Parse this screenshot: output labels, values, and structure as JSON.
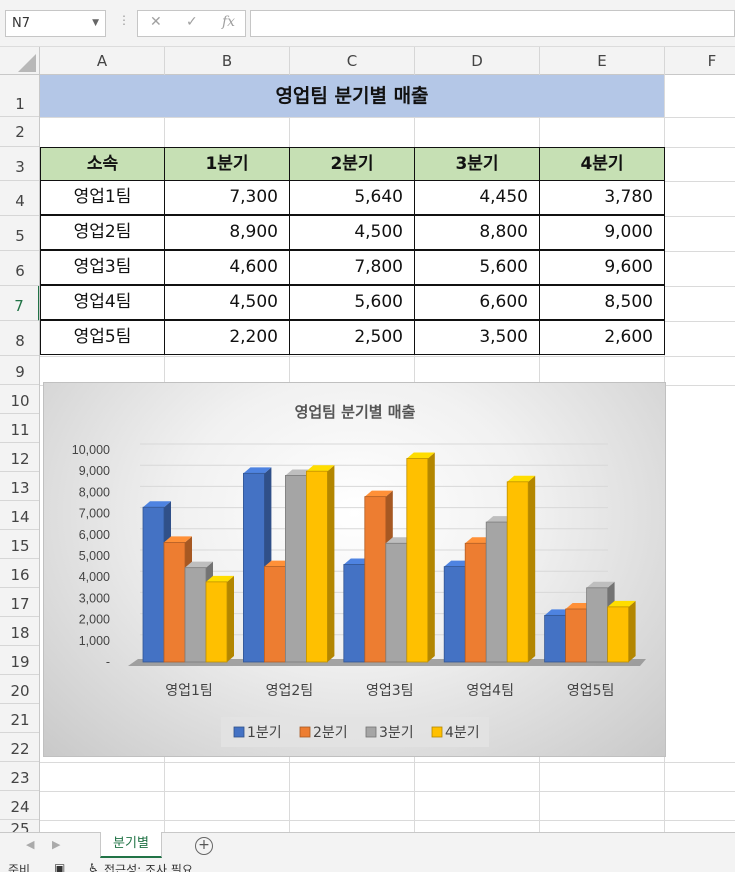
{
  "formula_bar": {
    "name_box": "N7",
    "cancel_icon": "✕",
    "enter_icon": "✓",
    "function_icon": "fx",
    "formula_value": ""
  },
  "columns": [
    "A",
    "B",
    "C",
    "D",
    "E",
    "F"
  ],
  "rows": [
    "1",
    "2",
    "3",
    "4",
    "5",
    "6",
    "7",
    "8",
    "9",
    "10",
    "11",
    "12",
    "13",
    "14",
    "15",
    "16",
    "17",
    "18",
    "19",
    "20",
    "21",
    "22",
    "23",
    "24",
    "25"
  ],
  "sheet": {
    "title": "영업팀 분기별 매출",
    "headers": [
      "소속",
      "1분기",
      "2분기",
      "3분기",
      "4분기"
    ],
    "data": [
      [
        "영업1팀",
        "7,300",
        "5,640",
        "4,450",
        "3,780"
      ],
      [
        "영업2팀",
        "8,900",
        "4,500",
        "8,800",
        "9,000"
      ],
      [
        "영업3팀",
        "4,600",
        "7,800",
        "5,600",
        "9,600"
      ],
      [
        "영업4팀",
        "4,500",
        "5,600",
        "6,600",
        "8,500"
      ],
      [
        "영업5팀",
        "2,200",
        "2,500",
        "3,500",
        "2,600"
      ]
    ]
  },
  "chart_data": {
    "type": "bar",
    "title": "영업팀 분기별 매출",
    "categories": [
      "영업1팀",
      "영업2팀",
      "영업3팀",
      "영업4팀",
      "영업5팀"
    ],
    "series": [
      {
        "name": "1분기",
        "values": [
          7300,
          8900,
          4600,
          4500,
          2200
        ],
        "color": "#4472c4"
      },
      {
        "name": "2분기",
        "values": [
          5640,
          4500,
          7800,
          5600,
          2500
        ],
        "color": "#ed7d31"
      },
      {
        "name": "3분기",
        "values": [
          4450,
          8800,
          5600,
          6600,
          3500
        ],
        "color": "#a5a5a5"
      },
      {
        "name": "4분기",
        "values": [
          3780,
          9000,
          9600,
          8500,
          2600
        ],
        "color": "#ffc000"
      }
    ],
    "y_ticks": [
      "-",
      "1,000",
      "2,000",
      "3,000",
      "4,000",
      "5,000",
      "6,000",
      "7,000",
      "8,000",
      "9,000",
      "10,000"
    ],
    "ylim": [
      0,
      10000
    ],
    "legend_position": "bottom",
    "grid": true
  },
  "tabs": {
    "active_sheet": "분기별",
    "add_icon": "+"
  },
  "status_bar": {
    "ready": "준비",
    "accessibility": "접근성: 조사 필요"
  }
}
